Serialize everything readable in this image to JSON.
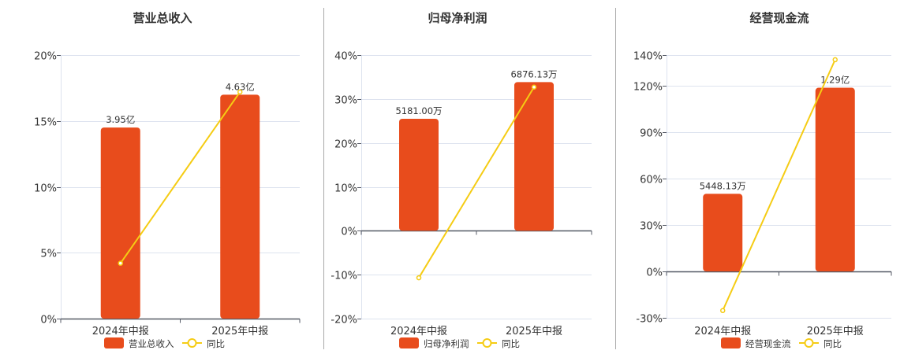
{
  "colors": {
    "bar": "#e84c1c",
    "line": "#f5cc14",
    "grid": "#dde3ef",
    "axis": "#555a66",
    "divider": "#aaaaaa"
  },
  "chart_data": [
    {
      "type": "bar+line",
      "title": "营业总收入",
      "categories": [
        "2024年中报",
        "2025年中报"
      ],
      "bar_series": {
        "name": "营业总收入",
        "values": [
          3.95,
          4.63
        ],
        "unit": "亿",
        "labels": [
          "3.95亿",
          "4.63亿"
        ]
      },
      "line_series": {
        "name": "同比",
        "values": [
          4.2,
          17.2
        ],
        "unit": "%"
      },
      "y_ticks": [
        "0%",
        "5%",
        "10%",
        "15%",
        "20%"
      ],
      "ylim": [
        0,
        20
      ],
      "grid": true,
      "legend": "bottom"
    },
    {
      "type": "bar+line",
      "title": "归母净利润",
      "categories": [
        "2024年中报",
        "2025年中报"
      ],
      "bar_series": {
        "name": "归母净利润",
        "values": [
          5181.0,
          6876.13
        ],
        "unit": "万",
        "labels": [
          "5181.00万",
          "6876.13万"
        ]
      },
      "line_series": {
        "name": "同比",
        "values": [
          -10.7,
          32.7
        ],
        "unit": "%"
      },
      "y_ticks": [
        "-20%",
        "-10%",
        "0%",
        "10%",
        "20%",
        "30%",
        "40%"
      ],
      "ylim": [
        -20,
        40
      ],
      "grid": true,
      "legend": "bottom"
    },
    {
      "type": "bar+line",
      "title": "经营现金流",
      "categories": [
        "2024年中报",
        "2025年中报"
      ],
      "bar_series": {
        "name": "经营现金流",
        "values": [
          5448.13,
          12900
        ],
        "unit": "万",
        "labels": [
          "5448.13万",
          "1.29亿"
        ]
      },
      "line_series": {
        "name": "同比",
        "values": [
          -25.3,
          137
        ],
        "unit": "%"
      },
      "y_ticks": [
        "-30%",
        "0%",
        "30%",
        "60%",
        "90%",
        "120%",
        "140%"
      ],
      "ylim": [
        -30,
        140
      ],
      "grid": true,
      "legend": "bottom"
    }
  ]
}
